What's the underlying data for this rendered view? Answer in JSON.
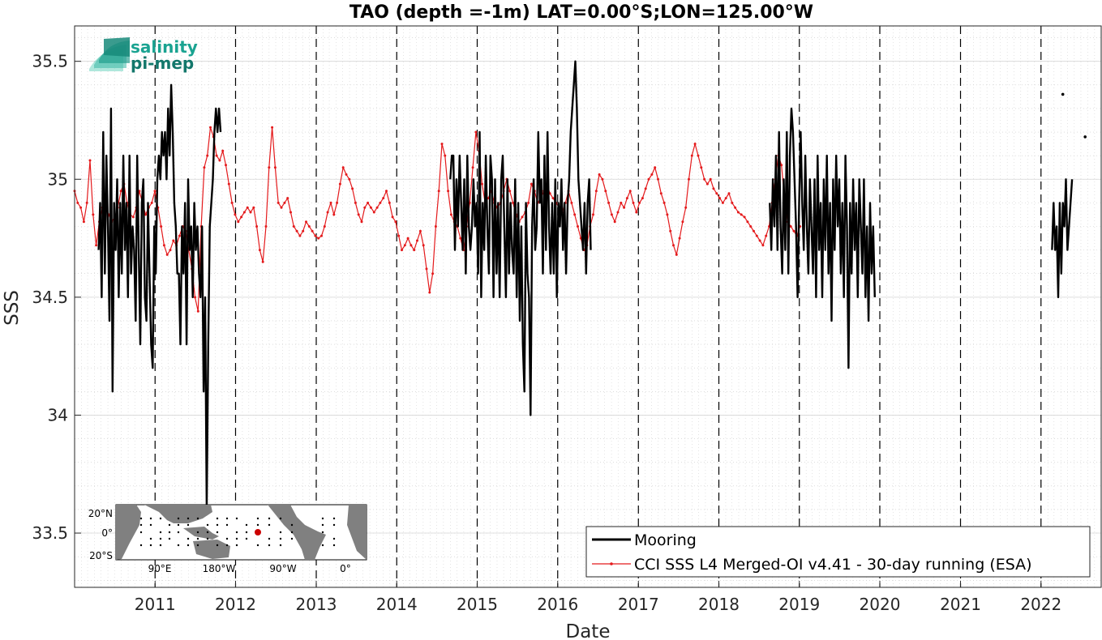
{
  "chart_data": {
    "type": "line",
    "title": "TAO (depth =-1m) LAT=0.00°S;LON=125.00°W",
    "xlabel": "Date",
    "ylabel": "SSS",
    "xlim": [
      "2010-01-01",
      "2022-10-01"
    ],
    "ylim": [
      33.27,
      35.65
    ],
    "yticks": [
      33.5,
      34,
      34.5,
      35,
      35.5
    ],
    "ytick_labels": [
      "33.5",
      "34",
      "34.5",
      "35",
      "35.5"
    ],
    "xticks": [
      "2011-01-01",
      "2012-01-01",
      "2013-01-01",
      "2014-01-01",
      "2015-01-01",
      "2016-01-01",
      "2017-01-01",
      "2018-01-01",
      "2019-01-01",
      "2020-01-01",
      "2021-01-01",
      "2022-01-01"
    ],
    "xtick_labels": [
      "2011",
      "2012",
      "2013",
      "2014",
      "2015",
      "2016",
      "2017",
      "2018",
      "2019",
      "2020",
      "2021",
      "2022"
    ],
    "year_dividers": "dashed vertical lines at each year start",
    "grid": "minor dotted",
    "legend_position": "bottom-right",
    "series": [
      {
        "name": "Mooring",
        "color": "#000000",
        "segments": [
          {
            "start": "2010-04-20",
            "step_days": 7,
            "values": [
              34.7,
              34.9,
              34.5,
              35.2,
              34.6,
              35.1,
              34.8,
              34.4,
              35.3,
              34.1,
              34.9,
              34.7,
              35.0,
              34.5,
              34.9,
              34.6,
              35.1,
              34.7,
              34.9,
              34.5,
              35.1,
              34.6,
              34.8,
              34.7,
              34.4,
              35.1,
              34.7,
              34.3,
              34.9,
              35.0,
              34.5,
              34.4,
              34.9,
              34.6,
              34.3,
              34.2,
              34.8,
              34.6,
              35.0,
              35.1,
              35.0,
              35.2,
              35.1,
              35.2,
              35.0,
              35.3,
              35.1,
              35.4,
              35.2,
              34.9,
              34.8,
              34.6,
              34.6,
              34.3,
              34.8,
              34.6,
              34.9,
              34.3,
              35.0,
              34.7,
              34.8,
              34.5,
              34.9,
              34.7,
              34.8,
              34.6,
              34.5,
              34.8,
              34.1,
              34.5,
              33.6,
              34.3,
              34.8,
              34.9,
              35.0,
              35.2,
              35.3,
              35.2,
              35.3,
              35.2
            ]
          },
          {
            "start": "2014-09-01",
            "step_days": 7,
            "values": [
              35.0,
              35.1,
              35.1,
              34.7,
              35.0,
              34.8,
              35.1,
              34.9,
              34.7,
              35.0,
              34.6,
              35.1,
              34.8,
              34.7,
              34.8,
              35.0,
              34.8,
              34.9,
              34.6,
              35.2,
              34.5,
              34.9,
              34.7,
              35.1,
              34.8,
              34.6,
              35.1,
              35.0,
              34.5,
              35.0,
              34.6,
              34.9,
              34.5,
              35.0,
              35.1,
              34.8,
              34.5,
              35.0,
              34.6,
              34.9,
              34.7,
              34.6,
              35.0,
              34.5,
              34.9,
              34.4,
              34.8,
              34.3,
              34.1,
              34.9,
              34.6,
              34.5,
              34.0,
              34.8,
              35.0,
              34.7,
              34.8,
              35.2,
              34.9,
              35.0,
              34.6,
              35.1,
              34.7,
              35.2,
              34.8,
              34.6,
              34.9,
              34.6,
              35.0,
              34.5,
              34.9,
              34.8,
              35.0,
              34.7,
              34.9,
              34.6,
              34.9,
              35.0,
              35.2,
              35.3,
              35.4,
              35.5,
              35.3,
              35.0,
              34.9,
              34.8,
              34.7,
              34.9,
              34.6,
              34.9,
              35.0,
              34.7
            ]
          },
          {
            "start": "2018-08-20",
            "step_days": 7,
            "values": [
              34.9,
              34.7,
              35.0,
              34.8,
              35.1,
              34.7,
              35.2,
              34.8,
              34.6,
              35.0,
              34.7,
              35.2,
              34.6,
              35.1,
              35.3,
              35.2,
              35.0,
              34.8,
              34.5,
              34.9,
              35.2,
              34.9,
              34.7,
              35.1,
              34.8,
              34.6,
              35.0,
              34.8,
              34.6,
              35.0,
              34.5,
              35.1,
              34.7,
              34.9,
              34.5,
              35.0,
              34.7,
              35.1,
              34.6,
              34.9,
              34.4,
              35.0,
              34.7,
              35.1,
              34.8,
              35.0,
              34.6,
              34.9,
              34.5,
              35.1,
              34.8,
              34.2,
              34.9,
              34.6,
              35.0,
              34.7,
              34.9,
              34.5,
              35.0,
              34.8,
              34.6,
              35.0,
              34.5,
              34.8,
              34.4,
              34.9,
              34.6,
              34.8,
              34.5
            ]
          },
          {
            "start": "2022-02-20",
            "step_days": 7,
            "values": [
              34.7,
              34.9,
              34.7,
              34.8,
              34.5,
              34.9,
              34.6,
              34.9,
              34.8,
              35.0,
              34.7,
              34.8,
              34.9,
              35.0
            ]
          }
        ],
        "isolated_points": [
          [
            "2022-04-10",
            35.36
          ],
          [
            "2022-07-20",
            35.18
          ]
        ]
      },
      {
        "name": "CCI SSS L4 Merged-OI v4.41 - 30-day running (ESA)",
        "color": "#e41a1c",
        "start": "2010-01-01",
        "step_days": 14,
        "values": [
          34.95,
          34.9,
          34.88,
          34.82,
          34.9,
          35.08,
          34.85,
          34.72,
          34.82,
          34.88,
          34.9,
          34.85,
          34.82,
          34.84,
          34.88,
          34.95,
          34.98,
          34.9,
          34.85,
          34.84,
          34.88,
          34.95,
          34.9,
          34.85,
          34.88,
          34.9,
          34.95,
          34.88,
          34.8,
          34.72,
          34.68,
          34.7,
          34.74,
          34.72,
          34.76,
          34.8,
          34.78,
          34.7,
          34.62,
          34.5,
          34.44,
          34.8,
          35.05,
          35.1,
          35.22,
          35.18,
          35.1,
          35.08,
          35.12,
          35.06,
          34.98,
          34.9,
          34.85,
          34.82,
          34.84,
          34.86,
          34.88,
          34.86,
          34.88,
          34.8,
          34.7,
          34.65,
          34.8,
          35.05,
          35.22,
          35.05,
          34.9,
          34.88,
          34.9,
          34.92,
          34.86,
          34.8,
          34.78,
          34.76,
          34.78,
          34.82,
          34.8,
          34.78,
          34.76,
          34.75,
          34.76,
          34.8,
          34.86,
          34.9,
          34.85,
          34.9,
          34.98,
          35.05,
          35.02,
          35.0,
          34.96,
          34.9,
          34.85,
          34.82,
          34.88,
          34.9,
          34.88,
          34.86,
          34.88,
          34.9,
          34.92,
          34.95,
          34.9,
          34.84,
          34.82,
          34.76,
          34.7,
          34.72,
          34.75,
          34.72,
          34.7,
          34.74,
          34.78,
          34.72,
          34.62,
          34.52,
          34.6,
          34.8,
          34.95,
          35.15,
          35.1,
          34.95,
          34.85,
          34.82,
          34.8,
          34.75,
          34.7,
          34.8,
          34.9,
          35.05,
          35.2,
          35.12,
          34.98,
          34.9,
          34.92,
          34.95,
          34.9,
          34.88,
          34.9,
          34.95,
          35.0,
          34.95,
          34.9,
          34.85,
          34.82,
          34.84,
          34.86,
          34.9,
          34.98,
          34.95,
          34.9,
          34.92,
          34.95,
          34.98,
          34.94,
          34.92,
          34.9,
          34.88,
          34.86,
          34.9,
          34.95,
          34.9,
          34.85,
          34.8,
          34.75,
          34.7,
          34.72,
          34.8,
          34.85,
          34.95,
          35.02,
          35.0,
          34.95,
          34.9,
          34.85,
          34.82,
          34.86,
          34.9,
          34.88,
          34.92,
          34.95,
          34.9,
          34.86,
          34.9,
          34.92,
          34.96,
          35.0,
          35.02,
          35.05,
          35.0,
          34.94,
          34.9,
          34.85,
          34.78,
          34.72,
          34.68,
          34.75,
          34.82,
          34.88,
          35.0,
          35.1,
          35.15,
          35.1,
          35.05,
          35.0,
          34.98,
          35.0,
          34.96,
          34.94,
          34.92,
          34.9,
          34.92,
          34.94,
          34.9,
          34.88,
          34.86,
          34.85,
          34.84,
          34.82,
          34.8,
          34.78,
          34.76,
          34.74,
          34.72,
          34.76,
          34.8,
          34.9,
          35.0,
          35.1,
          35.06,
          34.92,
          34.82,
          34.8,
          34.78,
          34.76,
          34.8
        ]
      }
    ]
  },
  "logo": {
    "line1": "salinity",
    "line2": "pi-mep"
  },
  "inset_map": {
    "lat_labels": [
      "20°N",
      "0°",
      "20°S"
    ],
    "lon_labels": [
      "90°E",
      "180°W",
      "90°W",
      "0°"
    ],
    "ocean_color": "#ffffff",
    "land_color": "#808080",
    "marker_color": "#cc0000"
  }
}
